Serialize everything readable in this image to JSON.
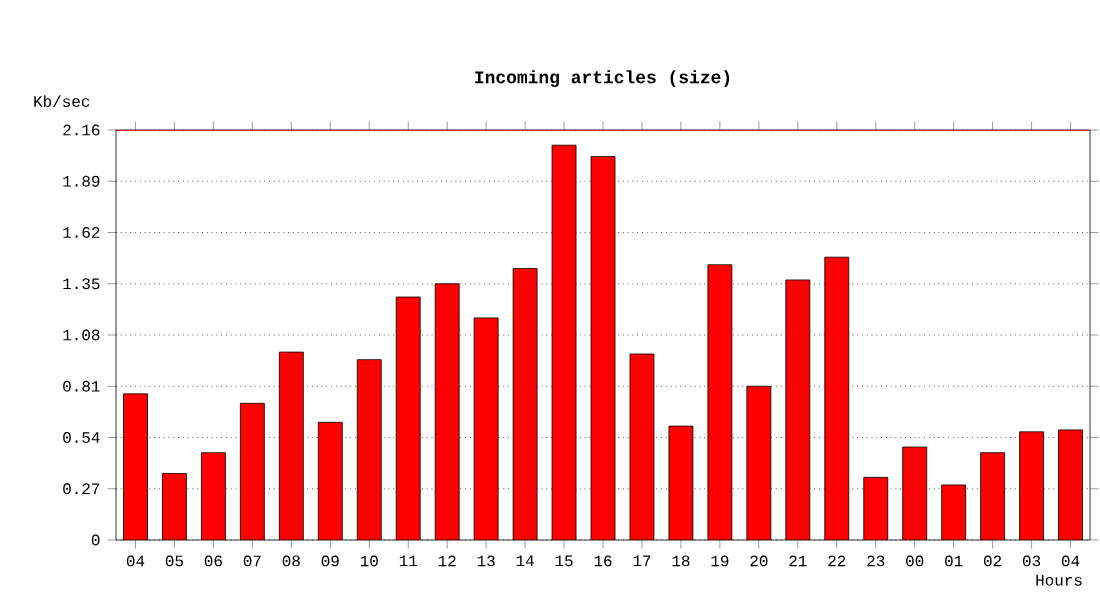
{
  "chart_data": {
    "type": "bar",
    "title": "Incoming articles (size)",
    "xlabel": "Hours",
    "ylabel": "Kb/sec",
    "categories": [
      "04",
      "05",
      "06",
      "07",
      "08",
      "09",
      "10",
      "11",
      "12",
      "13",
      "14",
      "15",
      "16",
      "17",
      "18",
      "19",
      "20",
      "21",
      "22",
      "23",
      "00",
      "01",
      "02",
      "03",
      "04"
    ],
    "values": [
      0.77,
      0.35,
      0.46,
      0.72,
      0.99,
      0.62,
      0.95,
      1.28,
      1.35,
      1.17,
      1.43,
      2.08,
      2.02,
      0.98,
      0.6,
      1.45,
      0.81,
      1.37,
      1.49,
      0.33,
      0.49,
      0.29,
      0.46,
      0.57,
      0.58
    ],
    "color": "#ff0000",
    "ylim": [
      0,
      2.16
    ],
    "yticks": [
      0,
      0.27,
      0.54,
      0.81,
      1.08,
      1.35,
      1.62,
      1.89,
      2.16
    ],
    "grid": "y",
    "line_style": "dotted",
    "ref_lines": [
      {
        "axis": "y",
        "value": 2.16,
        "color": "#ff0000"
      }
    ]
  }
}
